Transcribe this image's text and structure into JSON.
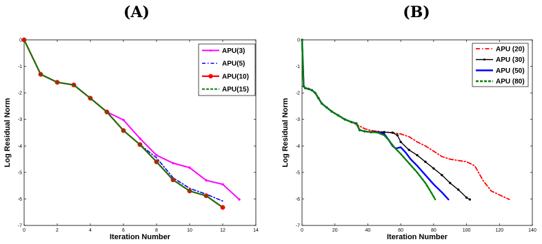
{
  "chart_data": [
    {
      "type": "line",
      "panel_label": "(A)",
      "xlabel": "Iteration Number",
      "ylabel": "Log Residual Norm",
      "xlim": [
        0,
        14
      ],
      "ylim": [
        -7,
        0
      ],
      "xticks": [
        0,
        2,
        4,
        6,
        8,
        10,
        12,
        14
      ],
      "yticks": [
        0,
        -1,
        -2,
        -3,
        -4,
        -5,
        -6,
        -7
      ],
      "xtick_labels": [
        "0",
        "2",
        "4",
        "6",
        "8",
        "10",
        "12",
        "14"
      ],
      "ytick_labels": [
        "0",
        "-1",
        "-2",
        "-3",
        "-4",
        "-5",
        "-6",
        "-7"
      ],
      "legend_position": "top-right",
      "series": [
        {
          "name": "APU(3)",
          "color": "#ff00ff",
          "dash": "",
          "width": 2,
          "marker": "dot",
          "x": [
            0,
            1,
            2,
            3,
            4,
            5,
            6,
            7,
            8,
            9,
            10,
            11,
            12,
            13
          ],
          "y": [
            0,
            -1.3,
            -1.6,
            -1.7,
            -2.2,
            -2.72,
            -3.02,
            -3.72,
            -4.35,
            -4.65,
            -4.82,
            -5.3,
            -5.45,
            -6.02
          ]
        },
        {
          "name": "APU(5)",
          "color": "#0000ff",
          "dash": "5,3,1.5,3",
          "width": 1.6,
          "marker": "none",
          "x": [
            0,
            1,
            2,
            3,
            4,
            5,
            6,
            7,
            8,
            9,
            10,
            11,
            12
          ],
          "y": [
            0,
            -1.3,
            -1.6,
            -1.7,
            -2.2,
            -2.72,
            -3.42,
            -3.95,
            -4.45,
            -5.2,
            -5.6,
            -5.82,
            -6.08
          ]
        },
        {
          "name": "APU(10)",
          "color": "#ff0000",
          "dash": "",
          "width": 2.2,
          "marker": "circle",
          "x": [
            0,
            1,
            2,
            3,
            4,
            5,
            6,
            7,
            8,
            9,
            10,
            11,
            12
          ],
          "y": [
            0,
            -1.3,
            -1.6,
            -1.7,
            -2.2,
            -2.72,
            -3.42,
            -3.95,
            -4.6,
            -5.28,
            -5.7,
            -5.88,
            -6.32
          ]
        },
        {
          "name": "APU(15)",
          "color": "#007f00",
          "dash": "4,2",
          "width": 2,
          "marker": "none",
          "x": [
            0,
            1,
            2,
            3,
            4,
            5,
            6,
            7,
            8,
            9,
            10,
            11,
            12
          ],
          "y": [
            0,
            -1.3,
            -1.6,
            -1.7,
            -2.2,
            -2.72,
            -3.42,
            -3.95,
            -4.6,
            -5.28,
            -5.7,
            -5.88,
            -6.32
          ]
        }
      ]
    },
    {
      "type": "line",
      "panel_label": "(B)",
      "xlabel": "Iteration Number",
      "ylabel": "Log Residual Norm",
      "xlim": [
        0,
        140
      ],
      "ylim": [
        -7,
        0
      ],
      "xticks": [
        0,
        20,
        40,
        60,
        80,
        100,
        120,
        140
      ],
      "yticks": [
        0,
        -1,
        -2,
        -3,
        -4,
        -5,
        -6,
        -7
      ],
      "xtick_labels": [
        "0",
        "20",
        "40",
        "60",
        "80",
        "100",
        "120",
        "140"
      ],
      "ytick_labels": [
        "0",
        "-1",
        "-2",
        "-3",
        "-4",
        "-5",
        "-6",
        "-7"
      ],
      "legend_position": "top-right",
      "series": [
        {
          "name": "APU (20)",
          "color": "#ff0000",
          "dash": "6,3,1.5,3",
          "width": 1.8,
          "marker": "none",
          "x": [
            0,
            1,
            2,
            4,
            6,
            8,
            10,
            12,
            15,
            18,
            22,
            26,
            30,
            34,
            38,
            42,
            46,
            50,
            55,
            60,
            65,
            70,
            75,
            80,
            85,
            90,
            95,
            100,
            105,
            110,
            115,
            120,
            126
          ],
          "y": [
            0,
            -1.75,
            -1.82,
            -1.85,
            -1.9,
            -2.0,
            -2.2,
            -2.4,
            -2.55,
            -2.7,
            -2.85,
            -3.0,
            -3.1,
            -3.22,
            -3.35,
            -3.42,
            -3.45,
            -3.48,
            -3.5,
            -3.55,
            -3.65,
            -3.85,
            -4.0,
            -4.2,
            -4.4,
            -4.5,
            -4.55,
            -4.6,
            -4.75,
            -5.3,
            -5.7,
            -5.85,
            -6.02
          ]
        },
        {
          "name": "APU (30)",
          "color": "#000000",
          "dash": "",
          "width": 1.4,
          "marker": "dot",
          "x": [
            0,
            1,
            2,
            4,
            6,
            8,
            10,
            12,
            15,
            18,
            22,
            26,
            30,
            33,
            35,
            38,
            42,
            46,
            50,
            55,
            58,
            60,
            65,
            70,
            75,
            80,
            85,
            90,
            95,
            100,
            102
          ],
          "y": [
            0,
            -1.75,
            -1.82,
            -1.85,
            -1.9,
            -2.0,
            -2.2,
            -2.4,
            -2.55,
            -2.7,
            -2.85,
            -3.0,
            -3.1,
            -3.15,
            -3.4,
            -3.45,
            -3.48,
            -3.48,
            -3.48,
            -3.5,
            -3.6,
            -3.85,
            -4.15,
            -4.35,
            -4.6,
            -4.85,
            -5.1,
            -5.4,
            -5.65,
            -5.95,
            -6.02
          ]
        },
        {
          "name": "APU (50)",
          "color": "#0000ff",
          "dash": "",
          "width": 2.4,
          "marker": "none",
          "x": [
            0,
            1,
            2,
            4,
            6,
            8,
            10,
            12,
            15,
            18,
            22,
            26,
            30,
            33,
            35,
            38,
            42,
            46,
            50,
            53,
            55,
            57,
            60,
            63,
            66,
            70,
            75,
            80,
            85,
            89
          ],
          "y": [
            0,
            -1.75,
            -1.82,
            -1.85,
            -1.9,
            -2.0,
            -2.2,
            -2.4,
            -2.55,
            -2.7,
            -2.85,
            -3.0,
            -3.1,
            -3.15,
            -3.4,
            -3.45,
            -3.48,
            -3.48,
            -3.55,
            -3.8,
            -4.0,
            -4.1,
            -4.05,
            -4.25,
            -4.5,
            -4.75,
            -5.1,
            -5.45,
            -5.75,
            -6.02
          ]
        },
        {
          "name": "APU (80)",
          "color": "#007f00",
          "dash": "4,2",
          "width": 2.4,
          "marker": "none",
          "x": [
            0,
            1,
            2,
            4,
            6,
            8,
            10,
            12,
            15,
            18,
            22,
            26,
            30,
            33,
            35,
            38,
            42,
            46,
            50,
            53,
            56,
            60,
            65,
            70,
            75,
            78,
            81
          ],
          "y": [
            0,
            -1.75,
            -1.82,
            -1.85,
            -1.9,
            -2.0,
            -2.2,
            -2.4,
            -2.55,
            -2.7,
            -2.85,
            -3.0,
            -3.1,
            -3.15,
            -3.4,
            -3.45,
            -3.48,
            -3.5,
            -3.6,
            -3.8,
            -4.05,
            -4.3,
            -4.65,
            -5.0,
            -5.4,
            -5.7,
            -6.02
          ]
        }
      ]
    }
  ]
}
